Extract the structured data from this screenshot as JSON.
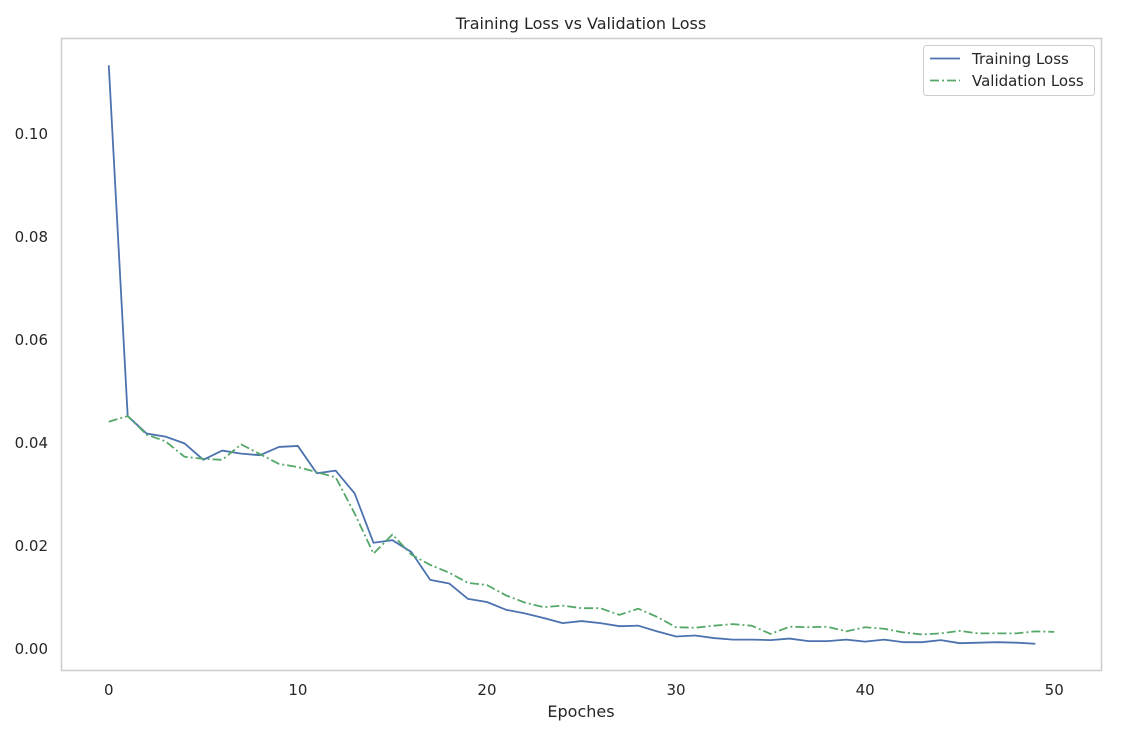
{
  "chart_data": {
    "type": "line",
    "title": "Training Loss vs Validation Loss",
    "xlabel": "Epoches",
    "ylabel": "",
    "xlim": [
      -2.5,
      52.5
    ],
    "ylim": [
      -0.0042,
      0.1185
    ],
    "xticks": [
      0,
      10,
      20,
      30,
      40,
      50
    ],
    "yticks": [
      0.0,
      0.02,
      0.04,
      0.06,
      0.08,
      0.1
    ],
    "ytick_labels": [
      "0.00",
      "0.02",
      "0.04",
      "0.06",
      "0.08",
      "0.10"
    ],
    "grid": false,
    "legend": "top-right",
    "series": [
      {
        "name": "Training Loss",
        "style": "solid",
        "color": "#4c72b0",
        "x": [
          0,
          1,
          2,
          3,
          4,
          5,
          6,
          7,
          8,
          9,
          10,
          11,
          12,
          13,
          14,
          15,
          16,
          17,
          18,
          19,
          20,
          21,
          22,
          23,
          24,
          25,
          26,
          27,
          28,
          29,
          30,
          31,
          32,
          33,
          34,
          35,
          36,
          37,
          38,
          39,
          40,
          41,
          42,
          43,
          44,
          45,
          46,
          47,
          48,
          49
        ],
        "values": [
          0.1133,
          0.0452,
          0.0418,
          0.0412,
          0.0399,
          0.0367,
          0.0385,
          0.0379,
          0.0376,
          0.0392,
          0.0394,
          0.0341,
          0.0346,
          0.0302,
          0.0206,
          0.0211,
          0.0188,
          0.0134,
          0.0127,
          0.0097,
          0.0091,
          0.0076,
          0.0069,
          0.006,
          0.005,
          0.0054,
          0.005,
          0.0044,
          0.0045,
          0.0034,
          0.0024,
          0.0026,
          0.0021,
          0.0018,
          0.0018,
          0.0017,
          0.002,
          0.0015,
          0.0015,
          0.0018,
          0.0014,
          0.0018,
          0.0013,
          0.0013,
          0.0017,
          0.0011,
          0.0012,
          0.0013,
          0.0012,
          0.001
        ]
      },
      {
        "name": "Validation Loss",
        "style": "dashdot",
        "color": "#55a868",
        "x": [
          0,
          1,
          2,
          3,
          4,
          5,
          6,
          7,
          8,
          9,
          10,
          11,
          12,
          13,
          14,
          15,
          16,
          17,
          18,
          19,
          20,
          21,
          22,
          23,
          24,
          25,
          26,
          27,
          28,
          29,
          30,
          31,
          32,
          33,
          34,
          35,
          36,
          37,
          38,
          39,
          40,
          41,
          42,
          43,
          44,
          45,
          46,
          47,
          48,
          49,
          50
        ],
        "values": [
          0.0441,
          0.0452,
          0.0416,
          0.0403,
          0.0373,
          0.0369,
          0.0367,
          0.0397,
          0.0378,
          0.0359,
          0.0353,
          0.0343,
          0.0333,
          0.0263,
          0.0185,
          0.0222,
          0.0183,
          0.0163,
          0.0148,
          0.0128,
          0.0124,
          0.0104,
          0.009,
          0.0081,
          0.0084,
          0.0079,
          0.0079,
          0.0066,
          0.0078,
          0.0062,
          0.0042,
          0.0041,
          0.0045,
          0.0048,
          0.0045,
          0.0029,
          0.0043,
          0.0042,
          0.0043,
          0.0034,
          0.0042,
          0.0039,
          0.0032,
          0.0028,
          0.003,
          0.0035,
          0.003,
          0.003,
          0.003,
          0.0034,
          0.0033
        ]
      }
    ]
  }
}
